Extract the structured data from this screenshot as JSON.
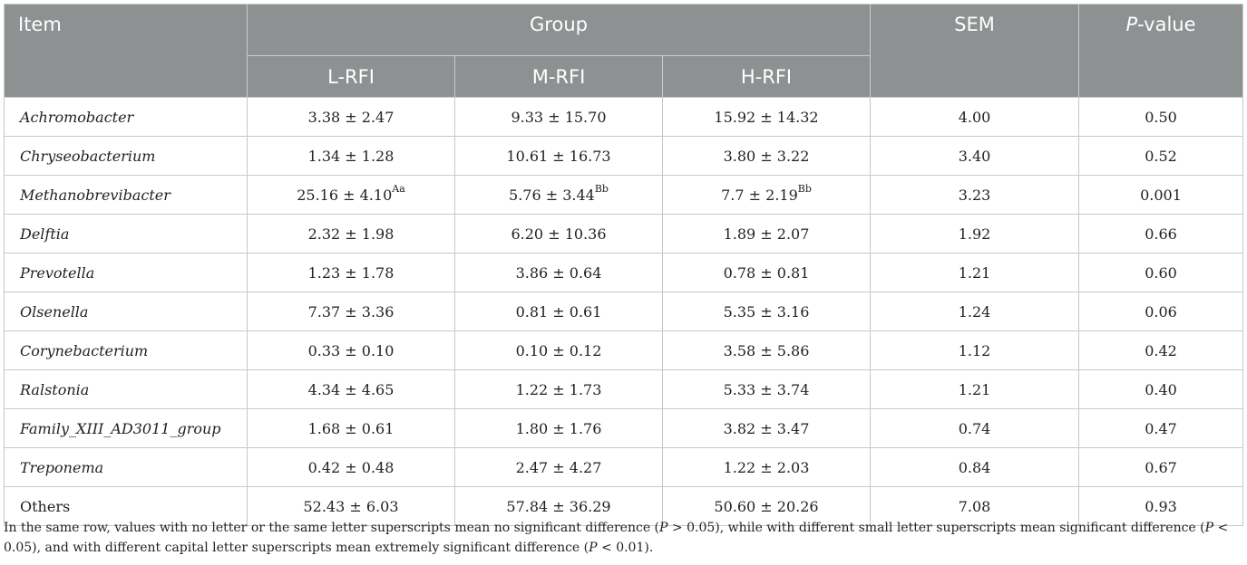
{
  "header": {
    "item": "Item",
    "group": "Group",
    "sem": "SEM",
    "p_italic": "P",
    "p_rest": "-value",
    "groups": [
      "L-RFI",
      "M-RFI",
      "H-RFI"
    ]
  },
  "rows": [
    {
      "item": "Achromobacter",
      "l": "3.38 ± 2.47",
      "l_sup": "",
      "m": "9.33 ± 15.70",
      "m_sup": "",
      "h": "15.92 ± 14.32",
      "h_sup": "",
      "sem": "4.00",
      "p": "0.50"
    },
    {
      "item": "Chryseobacterium",
      "l": "1.34 ± 1.28",
      "l_sup": "",
      "m": "10.61 ± 16.73",
      "m_sup": "",
      "h": "3.80 ± 3.22",
      "h_sup": "",
      "sem": "3.40",
      "p": "0.52"
    },
    {
      "item": "Methanobrevibacter",
      "l": "25.16 ± 4.10",
      "l_sup": "Aa",
      "m": "5.76 ± 3.44",
      "m_sup": "Bb",
      "h": "7.7 ± 2.19",
      "h_sup": "Bb",
      "sem": "3.23",
      "p": "0.001"
    },
    {
      "item": "Delftia",
      "l": "2.32 ± 1.98",
      "l_sup": "",
      "m": "6.20 ± 10.36",
      "m_sup": "",
      "h": "1.89 ± 2.07",
      "h_sup": "",
      "sem": "1.92",
      "p": "0.66"
    },
    {
      "item": "Prevotella",
      "l": "1.23 ± 1.78",
      "l_sup": "",
      "m": "3.86 ± 0.64",
      "m_sup": "",
      "h": "0.78 ± 0.81",
      "h_sup": "",
      "sem": "1.21",
      "p": "0.60"
    },
    {
      "item": "Olsenella",
      "l": "7.37 ± 3.36",
      "l_sup": "",
      "m": "0.81 ± 0.61",
      "m_sup": "",
      "h": "5.35 ± 3.16",
      "h_sup": "",
      "sem": "1.24",
      "p": "0.06"
    },
    {
      "item": "Corynebacterium",
      "l": "0.33 ± 0.10",
      "l_sup": "",
      "m": "0.10 ± 0.12",
      "m_sup": "",
      "h": "3.58 ± 5.86",
      "h_sup": "",
      "sem": "1.12",
      "p": "0.42"
    },
    {
      "item": "Ralstonia",
      "l": "4.34 ± 4.65",
      "l_sup": "",
      "m": "1.22 ± 1.73",
      "m_sup": "",
      "h": "5.33 ± 3.74",
      "h_sup": "",
      "sem": "1.21",
      "p": "0.40"
    },
    {
      "item": "Family_XIII_AD3011_group",
      "l": "1.68 ± 0.61",
      "l_sup": "",
      "m": "1.80 ± 1.76",
      "m_sup": "",
      "h": "3.82 ± 3.47",
      "h_sup": "",
      "sem": "0.74",
      "p": "0.47"
    },
    {
      "item": "Treponema",
      "l": "0.42 ± 0.48",
      "l_sup": "",
      "m": "2.47 ± 4.27",
      "m_sup": "",
      "h": "1.22 ± 2.03",
      "h_sup": "",
      "sem": "0.84",
      "p": "0.67"
    },
    {
      "item": "Others",
      "l": "52.43 ± 6.03",
      "l_sup": "",
      "m": "57.84 ± 36.29",
      "m_sup": "",
      "h": "50.60 ± 20.26",
      "h_sup": "",
      "sem": "7.08",
      "p": "0.93"
    }
  ],
  "footnote": {
    "t1": "In the same row, values with no letter or the same letter superscripts mean no significant difference (",
    "p1": "P",
    "t2": " > 0.05), while with different small letter superscripts mean significant difference (",
    "p2": "P",
    "t3": " < 0.05), and with different capital letter superscripts mean extremely significant difference (",
    "p3": "P",
    "t4": " < 0.01)."
  }
}
